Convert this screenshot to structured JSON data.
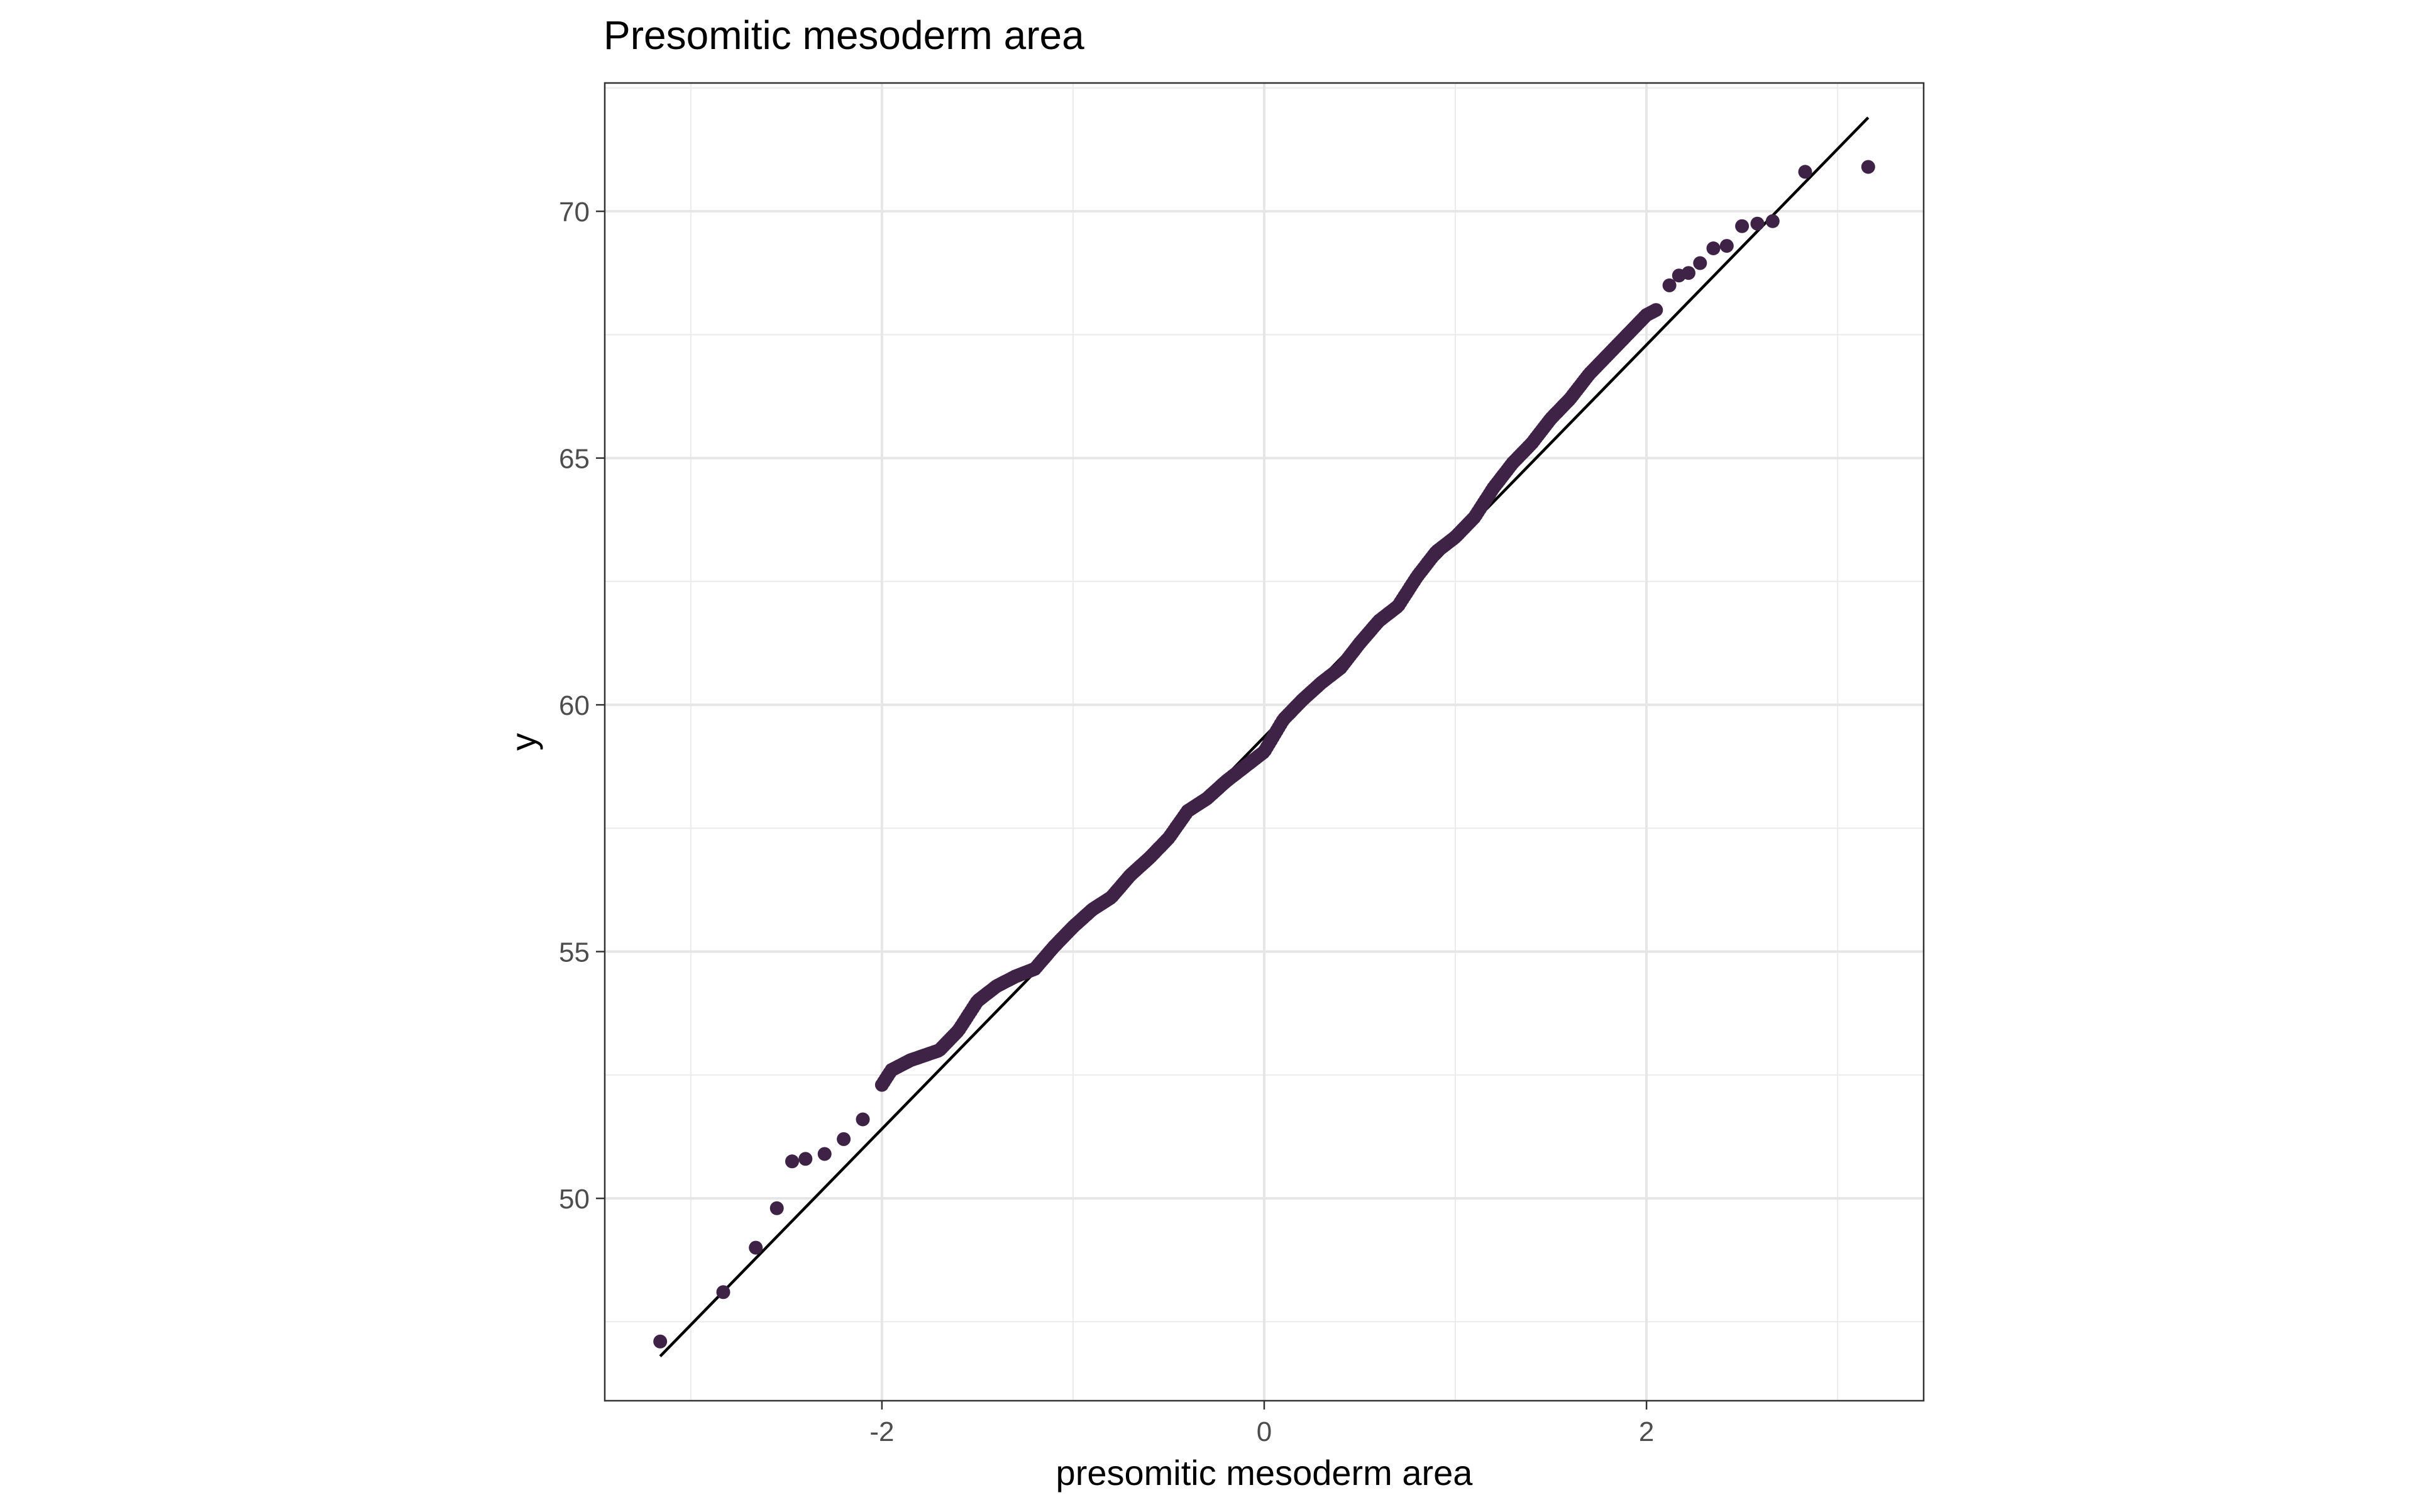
{
  "chart_data": {
    "type": "scatter",
    "subtype": "qq-plot",
    "title": "Presomitic mesoderm area",
    "xlabel": "presomitic mesoderm area",
    "ylabel": "y",
    "xlim": [
      -3.45,
      3.45
    ],
    "ylim": [
      45.9,
      72.6
    ],
    "x_ticks": [
      -2,
      0,
      2
    ],
    "y_ticks": [
      50,
      55,
      60,
      65,
      70
    ],
    "grid": true,
    "legend": "none",
    "point_color": "#3f2347",
    "line_color": "#000000",
    "reference_line": {
      "x": [
        -3.16,
        3.16
      ],
      "y": [
        46.8,
        71.9
      ]
    },
    "anchors": [
      [
        -3.16,
        47.1
      ],
      [
        -2.83,
        48.1
      ],
      [
        -2.66,
        49.0
      ],
      [
        -2.55,
        49.8
      ],
      [
        -2.47,
        50.75
      ],
      [
        -2.4,
        50.8
      ],
      [
        -2.3,
        50.9
      ],
      [
        -2.2,
        51.2
      ],
      [
        -2.1,
        51.6
      ],
      [
        -2.0,
        52.3
      ],
      [
        -1.95,
        52.6
      ],
      [
        -1.85,
        52.8
      ],
      [
        -1.7,
        53.0
      ],
      [
        -1.6,
        53.4
      ],
      [
        -1.5,
        54.0
      ],
      [
        -1.4,
        54.3
      ],
      [
        -1.3,
        54.5
      ],
      [
        -1.2,
        54.65
      ],
      [
        -1.1,
        55.1
      ],
      [
        -1.0,
        55.5
      ],
      [
        -0.9,
        55.85
      ],
      [
        -0.8,
        56.1
      ],
      [
        -0.7,
        56.55
      ],
      [
        -0.6,
        56.9
      ],
      [
        -0.5,
        57.3
      ],
      [
        -0.4,
        57.85
      ],
      [
        -0.3,
        58.1
      ],
      [
        -0.2,
        58.45
      ],
      [
        -0.1,
        58.75
      ],
      [
        0.0,
        59.05
      ],
      [
        0.1,
        59.7
      ],
      [
        0.2,
        60.1
      ],
      [
        0.3,
        60.45
      ],
      [
        0.4,
        60.75
      ],
      [
        0.5,
        61.25
      ],
      [
        0.6,
        61.7
      ],
      [
        0.7,
        62.0
      ],
      [
        0.8,
        62.6
      ],
      [
        0.9,
        63.1
      ],
      [
        1.0,
        63.4
      ],
      [
        1.1,
        63.8
      ],
      [
        1.2,
        64.4
      ],
      [
        1.3,
        64.9
      ],
      [
        1.4,
        65.3
      ],
      [
        1.5,
        65.8
      ],
      [
        1.6,
        66.2
      ],
      [
        1.7,
        66.7
      ],
      [
        1.8,
        67.1
      ],
      [
        1.9,
        67.5
      ],
      [
        2.0,
        67.9
      ],
      [
        2.05,
        68.0
      ]
    ],
    "tail_points": [
      [
        2.12,
        68.5
      ],
      [
        2.17,
        68.7
      ],
      [
        2.22,
        68.75
      ],
      [
        2.28,
        68.95
      ],
      [
        2.35,
        69.25
      ],
      [
        2.42,
        69.3
      ],
      [
        2.5,
        69.7
      ],
      [
        2.58,
        69.75
      ],
      [
        2.66,
        69.8
      ],
      [
        2.83,
        70.8
      ],
      [
        3.16,
        70.9
      ]
    ],
    "n_points": 400
  }
}
